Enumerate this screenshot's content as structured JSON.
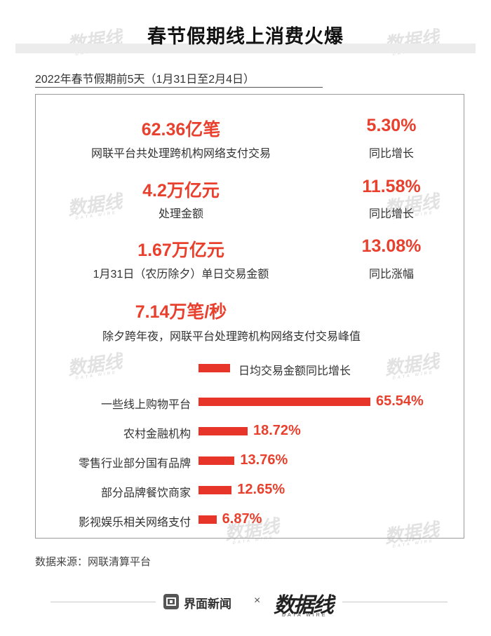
{
  "title": "春节假期线上消费火爆",
  "subtitle": "2022年春节假期前5天（1月31日至2月4日）",
  "stats": [
    {
      "value": "62.36亿笔",
      "label": "网联平台共处理跨机构网络支付交易",
      "change_value": "5.30%",
      "change_label": "同比增长"
    },
    {
      "value": "4.2万亿元",
      "label": "处理金额",
      "change_value": "11.58%",
      "change_label": "同比增长"
    },
    {
      "value": "1.67万亿元",
      "label": "1月31日（农历除夕）单日交易金额",
      "change_value": "13.08%",
      "change_label": "同比涨幅"
    }
  ],
  "peak": {
    "value": "7.14万笔/秒",
    "label": "除夕跨年夜，网联平台处理跨机构网络支付交易峰值"
  },
  "chart_data": {
    "type": "bar",
    "orientation": "horizontal",
    "legend": "日均交易金额同比增长",
    "legend_position": "top",
    "categories": [
      "一些线上购物平台",
      "农村金融机构",
      "零售行业部分国有品牌",
      "部分品牌餐饮商家",
      "影视娱乐相关网络支付"
    ],
    "values": [
      65.54,
      18.72,
      13.76,
      12.65,
      6.87
    ],
    "value_labels": [
      "65.54%",
      "18.72%",
      "13.76%",
      "12.65%",
      "6.87%"
    ],
    "unit": "%",
    "grid": false,
    "bar_color": "#e8352a"
  },
  "source": "数据来源：网联清算平台",
  "footer": {
    "brand1": "界面新闻",
    "separator": "×",
    "brand2": "数据线",
    "brand2_sub": "DATA WIRE"
  },
  "watermark": {
    "text": "数据线",
    "sub": "DATA WIRE"
  },
  "colors": {
    "accent": "#e8402d",
    "bar": "#e8352a",
    "border": "#9a9a9a"
  }
}
